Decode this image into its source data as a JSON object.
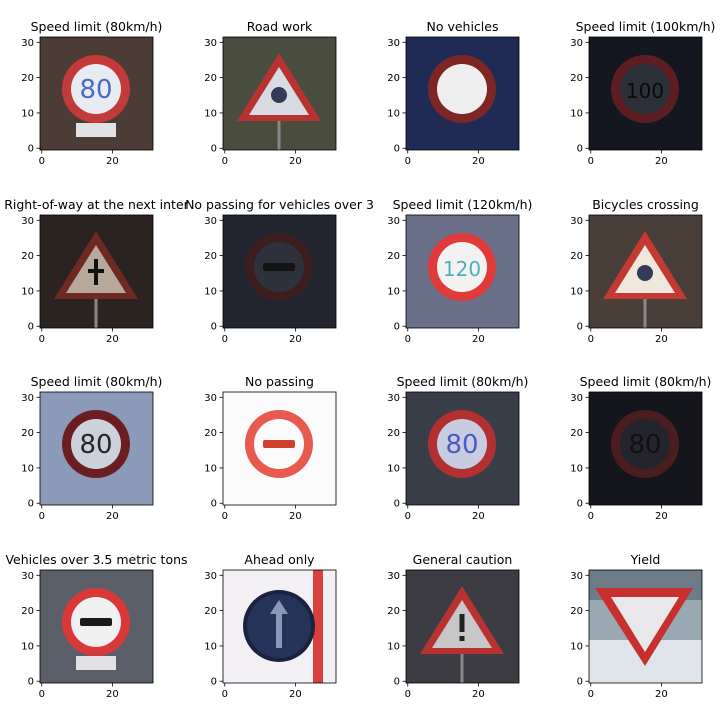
{
  "chart_data": [
    {
      "type": "image",
      "title": "Speed limit (80km/h)",
      "xticks": [
        "0",
        "20"
      ],
      "yticks": [
        "0",
        "10",
        "20",
        "30"
      ],
      "xlim": [
        -0.5,
        31.5
      ],
      "ylim": [
        31.5,
        -0.5
      ],
      "content": {
        "kind": "circle-number",
        "bg": "#4b3d35",
        "fill": "#e8ecf2",
        "ring": "#c23a3a",
        "text": "80",
        "textColor": "#4a6cc0",
        "plate": true
      }
    },
    {
      "type": "image",
      "title": "Road work",
      "xticks": [
        "0",
        "20"
      ],
      "yticks": [
        "0",
        "10",
        "20",
        "30"
      ],
      "xlim": [
        -0.5,
        31.5
      ],
      "ylim": [
        31.5,
        -0.5
      ],
      "content": {
        "kind": "triangle",
        "bg": "#4a4c3e",
        "fill": "#d7dbe1",
        "ring": "#b83232",
        "symbol": "worker"
      }
    },
    {
      "type": "image",
      "title": "No vehicles",
      "xticks": [
        "0",
        "20"
      ],
      "yticks": [
        "0",
        "10",
        "20",
        "30"
      ],
      "xlim": [
        -0.5,
        31.5
      ],
      "ylim": [
        31.5,
        -0.5
      ],
      "content": {
        "kind": "circle-blank",
        "bg": "#1f2a55",
        "fill": "#eeeeee",
        "ring": "#7c2626"
      }
    },
    {
      "type": "image",
      "title": "Speed limit (100km/h)",
      "xticks": [
        "0",
        "20"
      ],
      "yticks": [
        "0",
        "10",
        "20",
        "30"
      ],
      "xlim": [
        -0.5,
        31.5
      ],
      "ylim": [
        31.5,
        -0.5
      ],
      "content": {
        "kind": "circle-number",
        "bg": "#141620",
        "fill": "#2c3038",
        "ring": "#5c1e22",
        "text": "100",
        "textColor": "#0a0a0a",
        "plate": false
      }
    },
    {
      "type": "image",
      "title": "Right-of-way at the next inter",
      "xticks": [
        "0",
        "20"
      ],
      "yticks": [
        "0",
        "10",
        "20",
        "30"
      ],
      "xlim": [
        -0.5,
        31.5
      ],
      "ylim": [
        31.5,
        -0.5
      ],
      "content": {
        "kind": "triangle",
        "bg": "#2a231f",
        "fill": "#b7a89a",
        "ring": "#6c2a22",
        "symbol": "cross"
      }
    },
    {
      "type": "image",
      "title": "No passing for vehicles over 3",
      "xticks": [
        "0",
        "20"
      ],
      "yticks": [
        "0",
        "10",
        "20",
        "30"
      ],
      "xlim": [
        -0.5,
        31.5
      ],
      "ylim": [
        31.5,
        -0.5
      ],
      "content": {
        "kind": "circle-bar",
        "bg": "#222530",
        "fill": "#2f323c",
        "ring": "#3c1e20",
        "barColor": "#141414"
      }
    },
    {
      "type": "image",
      "title": "Speed limit (120km/h)",
      "xticks": [
        "0",
        "20"
      ],
      "yticks": [
        "0",
        "10",
        "20",
        "30"
      ],
      "xlim": [
        -0.5,
        31.5
      ],
      "ylim": [
        31.5,
        -0.5
      ],
      "content": {
        "kind": "circle-number",
        "bg": "#6a6f8a",
        "fill": "#f4f2f0",
        "ring": "#e03a3a",
        "text": "120",
        "textColor": "#4ab0c0",
        "plate": false
      }
    },
    {
      "type": "image",
      "title": "Bicycles crossing",
      "xticks": [
        "0",
        "20"
      ],
      "yticks": [
        "0",
        "10",
        "20",
        "30"
      ],
      "xlim": [
        -0.5,
        31.5
      ],
      "ylim": [
        31.5,
        -0.5
      ],
      "content": {
        "kind": "triangle",
        "bg": "#4a3f38",
        "fill": "#efe6dc",
        "ring": "#c23a32",
        "symbol": "bike"
      }
    },
    {
      "type": "image",
      "title": "Speed limit (80km/h)",
      "xticks": [
        "0",
        "20"
      ],
      "yticks": [
        "0",
        "10",
        "20",
        "30"
      ],
      "xlim": [
        -0.5,
        31.5
      ],
      "ylim": [
        31.5,
        -0.5
      ],
      "content": {
        "kind": "circle-number",
        "bg": "#8a9ab8",
        "fill": "#ccd2dc",
        "ring": "#6a1e22",
        "text": "80",
        "textColor": "#262626",
        "plate": false
      }
    },
    {
      "type": "image",
      "title": "No passing",
      "xticks": [
        "0",
        "20"
      ],
      "yticks": [
        "0",
        "10",
        "20",
        "30"
      ],
      "xlim": [
        -0.5,
        31.5
      ],
      "ylim": [
        31.5,
        -0.5
      ],
      "content": {
        "kind": "circle-bar",
        "bg": "#fbfbfb",
        "fill": "#fafafa",
        "ring": "#e85a50",
        "barColor": "#d04030"
      }
    },
    {
      "type": "image",
      "title": "Speed limit (80km/h)",
      "xticks": [
        "0",
        "20"
      ],
      "yticks": [
        "0",
        "10",
        "20",
        "30"
      ],
      "xlim": [
        -0.5,
        31.5
      ],
      "ylim": [
        31.5,
        -0.5
      ],
      "content": {
        "kind": "circle-number",
        "bg": "#3a3e48",
        "fill": "#c8cce0",
        "ring": "#b23030",
        "text": "80",
        "textColor": "#4a5cc0",
        "plate": false
      }
    },
    {
      "type": "image",
      "title": "Speed limit (80km/h)",
      "xticks": [
        "0",
        "20"
      ],
      "yticks": [
        "0",
        "10",
        "20",
        "30"
      ],
      "xlim": [
        -0.5,
        31.5
      ],
      "ylim": [
        31.5,
        -0.5
      ],
      "content": {
        "kind": "circle-number",
        "bg": "#15161c",
        "fill": "#24252c",
        "ring": "#4a1e20",
        "text": "80",
        "textColor": "#101010",
        "plate": false
      }
    },
    {
      "type": "image",
      "title": "Vehicles over 3.5 metric tons",
      "xticks": [
        "0",
        "20"
      ],
      "yticks": [
        "0",
        "10",
        "20",
        "30"
      ],
      "xlim": [
        -0.5,
        31.5
      ],
      "ylim": [
        31.5,
        -0.5
      ],
      "content": {
        "kind": "circle-bar",
        "bg": "#5a5e68",
        "fill": "#f0f0f2",
        "ring": "#d83838",
        "barColor": "#1a1a1a",
        "plate": true
      }
    },
    {
      "type": "image",
      "title": "Ahead only",
      "xticks": [
        "0",
        "20"
      ],
      "yticks": [
        "0",
        "10",
        "20",
        "30"
      ],
      "xlim": [
        -0.5,
        31.5
      ],
      "ylim": [
        31.5,
        -0.5
      ],
      "content": {
        "kind": "circle-arrow",
        "bg": "#f2f0f4",
        "fill": "#243458",
        "ring": "#1a2240"
      }
    },
    {
      "type": "image",
      "title": "General caution",
      "xticks": [
        "0",
        "20"
      ],
      "yticks": [
        "0",
        "10",
        "20",
        "30"
      ],
      "xlim": [
        -0.5,
        31.5
      ],
      "ylim": [
        31.5,
        -0.5
      ],
      "content": {
        "kind": "triangle",
        "bg": "#3c3c42",
        "fill": "#c8c6c8",
        "ring": "#b83232",
        "symbol": "exclaim"
      }
    },
    {
      "type": "image",
      "title": "Yield",
      "xticks": [
        "0",
        "20"
      ],
      "yticks": [
        "0",
        "10",
        "20",
        "30"
      ],
      "xlim": [
        -0.5,
        31.5
      ],
      "ylim": [
        31.5,
        -0.5
      ],
      "content": {
        "kind": "yield",
        "bg": "#9aa8b2",
        "fill": "#e8e8ea",
        "ring": "#c83030"
      }
    }
  ]
}
